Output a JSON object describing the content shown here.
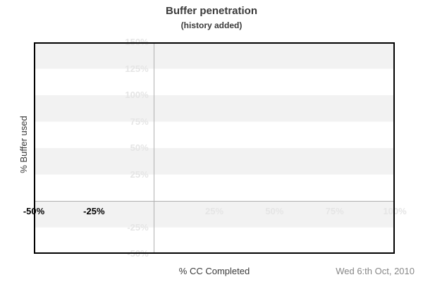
{
  "chart_data": {
    "type": "line",
    "title": "Buffer penetration",
    "subtitle": "(history added)",
    "xlabel": "% CC Completed",
    "ylabel": "% Buffer used",
    "date_note": "Wed 6:th Oct, 2010",
    "xlim": [
      -50,
      100
    ],
    "ylim": [
      -50,
      150
    ],
    "series": [],
    "x_ticks": [
      {
        "value": -50,
        "label": "-50%",
        "dark": true
      },
      {
        "value": -25,
        "label": "-25%",
        "dark": true
      },
      {
        "value": 25,
        "label": "25%",
        "dark": false
      },
      {
        "value": 50,
        "label": "50%",
        "dark": false
      },
      {
        "value": 75,
        "label": "75%",
        "dark": false
      },
      {
        "value": 100,
        "label": "100%",
        "dark": false
      }
    ],
    "y_ticks": [
      {
        "value": 150,
        "label": "150%",
        "dark": false
      },
      {
        "value": 125,
        "label": "125%",
        "dark": false
      },
      {
        "value": 100,
        "label": "100%",
        "dark": false
      },
      {
        "value": 75,
        "label": "75%",
        "dark": false
      },
      {
        "value": 50,
        "label": "50%",
        "dark": false
      },
      {
        "value": 25,
        "label": "25%",
        "dark": false
      },
      {
        "value": -25,
        "label": "-25%",
        "dark": false
      },
      {
        "value": -50,
        "label": "-50%",
        "dark": false
      }
    ],
    "gridlines": {
      "x_zero_line": true,
      "y_zero_line": true
    },
    "bands": {
      "interval": 25,
      "colors": [
        "#f2f2f2",
        "#ffffff"
      ]
    },
    "legend": "none"
  },
  "colors": {
    "text": "#3a3a3a",
    "muted": "#878787",
    "tick_dark": "#000000",
    "tick_light": "#e5e5e5",
    "band": "#f2f2f2",
    "zero_line": "#b0b0b0",
    "border": "#000000"
  }
}
